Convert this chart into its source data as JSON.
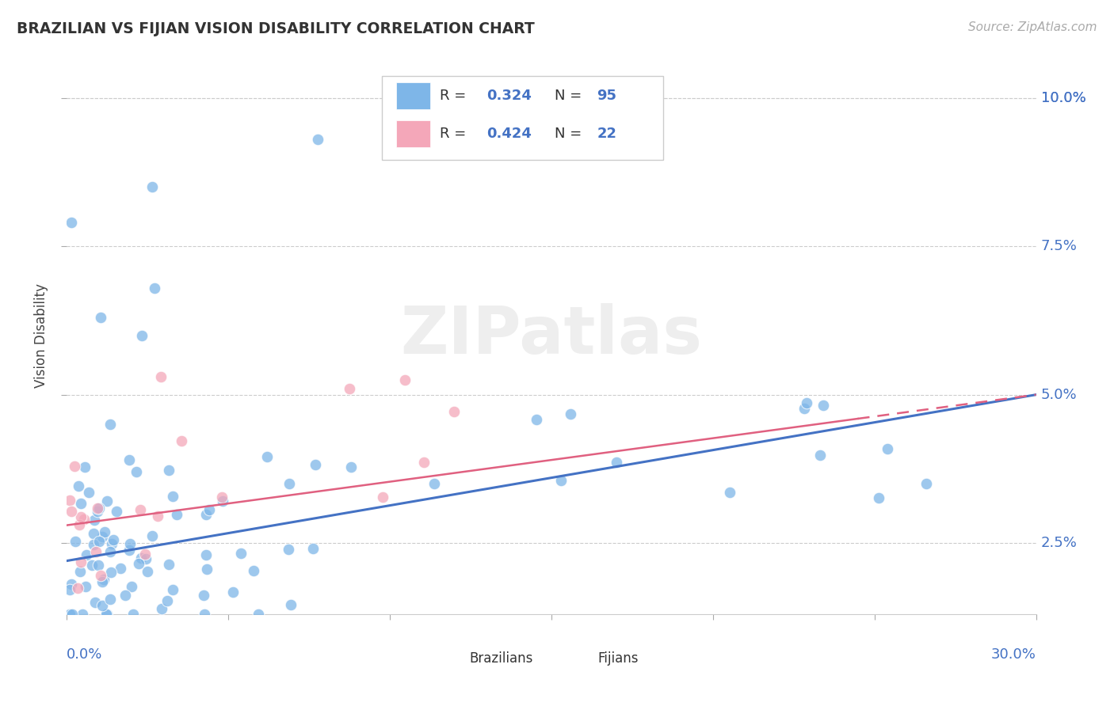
{
  "title": "BRAZILIAN VS FIJIAN VISION DISABILITY CORRELATION CHART",
  "source": "Source: ZipAtlas.com",
  "ylabel": "Vision Disability",
  "ytick_labels": [
    "2.5%",
    "5.0%",
    "7.5%",
    "10.0%"
  ],
  "ytick_values": [
    0.025,
    0.05,
    0.075,
    0.1
  ],
  "xlim": [
    0.0,
    0.3
  ],
  "ylim": [
    0.013,
    0.107
  ],
  "blue_color": "#7EB6E8",
  "pink_color": "#F4A7B9",
  "blue_line_color": "#4472C4",
  "pink_line_color": "#E06080",
  "text_blue": "#4472C4",
  "background_color": "#FFFFFF",
  "watermark": "ZIPatlas"
}
